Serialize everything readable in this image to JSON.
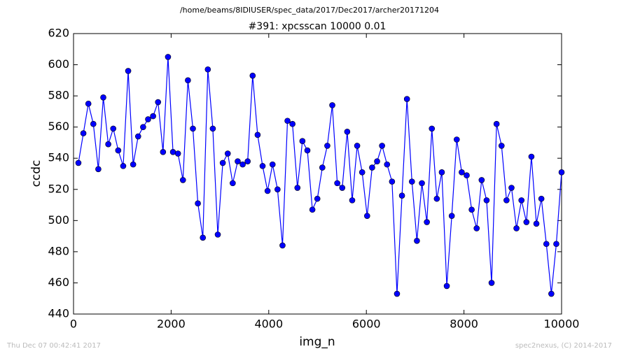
{
  "chart_data": {
    "type": "line",
    "suptitle": "/home/beams/8IDIUSER/spec_data/2017/Dec2017/archer20171204",
    "title": "#391: xpcsscan 10000 0.01",
    "xlabel": "img_n",
    "ylabel": "ccdc",
    "footer_left": "Thu Dec 07 00:42:41 2017",
    "footer_right": "spec2nexus, (C) 2014-2017",
    "xlim": [
      0,
      10000
    ],
    "xticks": [
      0,
      2000,
      4000,
      6000,
      8000,
      10000
    ],
    "ylim": [
      440,
      620
    ],
    "yticks": [
      440,
      460,
      480,
      500,
      520,
      540,
      560,
      580,
      600,
      620
    ],
    "x": [
      100,
      202,
      304,
      406,
      508,
      610,
      712,
      814,
      916,
      1018,
      1120,
      1222,
      1324,
      1426,
      1528,
      1630,
      1732,
      1834,
      1936,
      2038,
      2140,
      2242,
      2344,
      2446,
      2548,
      2650,
      2752,
      2854,
      2956,
      3058,
      3160,
      3262,
      3364,
      3466,
      3568,
      3670,
      3772,
      3874,
      3976,
      4078,
      4180,
      4282,
      4384,
      4486,
      4588,
      4690,
      4792,
      4894,
      4996,
      5098,
      5200,
      5302,
      5404,
      5506,
      5608,
      5710,
      5812,
      5914,
      6016,
      6118,
      6220,
      6322,
      6424,
      6526,
      6628,
      6730,
      6832,
      6934,
      7036,
      7138,
      7240,
      7342,
      7444,
      7546,
      7648,
      7750,
      7852,
      7954,
      8056,
      8158,
      8260,
      8362,
      8464,
      8566,
      8668,
      8770,
      8872,
      8974,
      9076,
      9178,
      9280,
      9382,
      9484,
      9586,
      9688,
      9790,
      9892,
      10000
    ],
    "series": [
      {
        "color": "#0000ff",
        "values": [
          537,
          556,
          575,
          562,
          533,
          579,
          549,
          559,
          545,
          535,
          596,
          536,
          554,
          560,
          565,
          567,
          576,
          544,
          605,
          544,
          543,
          526,
          590,
          559,
          511,
          489,
          597,
          559,
          491,
          537,
          543,
          524,
          538,
          536,
          538,
          593,
          555,
          535,
          519,
          536,
          520,
          484,
          564,
          562,
          521,
          551,
          545,
          507,
          514,
          534,
          548,
          574,
          524,
          521,
          557,
          513,
          548,
          531,
          503,
          534,
          538,
          548,
          536,
          525,
          453,
          516,
          578,
          525,
          487,
          524,
          499,
          559,
          514,
          531,
          458,
          503,
          552,
          531,
          529,
          507,
          495,
          526,
          513,
          460,
          562,
          548,
          513,
          521,
          495,
          513,
          499,
          541,
          498,
          514,
          485,
          453,
          485,
          531
        ]
      }
    ]
  }
}
